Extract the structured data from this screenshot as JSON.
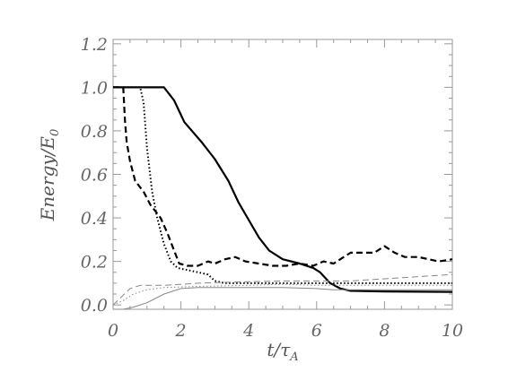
{
  "chart_data": {
    "type": "line",
    "xlim": [
      0,
      10
    ],
    "ylim": [
      -0.02,
      1.22
    ],
    "x_ticks": [
      "0",
      "2",
      "4",
      "6",
      "8",
      "10"
    ],
    "y_ticks": [
      "0.0",
      "0.2",
      "0.4",
      "0.6",
      "0.8",
      "1.0",
      "1.2"
    ],
    "xlabel": {
      "main": "t/τ",
      "sub": "A"
    },
    "ylabel": {
      "main": "Energy/E",
      "sub": "0"
    },
    "grid": false,
    "legend": "none",
    "series": [
      {
        "style": "solid-thick",
        "color": "#000000",
        "points": [
          [
            0,
            1.0
          ],
          [
            1.5,
            1.0
          ],
          [
            1.8,
            0.94
          ],
          [
            2.1,
            0.84
          ],
          [
            2.6,
            0.75
          ],
          [
            3.0,
            0.67
          ],
          [
            3.4,
            0.57
          ],
          [
            3.7,
            0.47
          ],
          [
            4.0,
            0.39
          ],
          [
            4.3,
            0.31
          ],
          [
            4.6,
            0.25
          ],
          [
            5.0,
            0.21
          ],
          [
            5.5,
            0.19
          ],
          [
            5.9,
            0.17
          ],
          [
            6.1,
            0.15
          ],
          [
            6.4,
            0.1
          ],
          [
            6.7,
            0.075
          ],
          [
            7.0,
            0.065
          ],
          [
            8.0,
            0.062
          ],
          [
            10.0,
            0.06
          ]
        ]
      },
      {
        "style": "dashed-thick",
        "color": "#000000",
        "points": [
          [
            0,
            1.0
          ],
          [
            0.3,
            1.0
          ],
          [
            0.35,
            0.85
          ],
          [
            0.4,
            0.75
          ],
          [
            0.5,
            0.66
          ],
          [
            0.65,
            0.57
          ],
          [
            0.9,
            0.52
          ],
          [
            1.1,
            0.46
          ],
          [
            1.4,
            0.4
          ],
          [
            1.6,
            0.33
          ],
          [
            1.8,
            0.25
          ],
          [
            1.95,
            0.19
          ],
          [
            2.2,
            0.18
          ],
          [
            2.5,
            0.18
          ],
          [
            2.8,
            0.2
          ],
          [
            3.0,
            0.19
          ],
          [
            3.3,
            0.21
          ],
          [
            3.6,
            0.22
          ],
          [
            3.9,
            0.2
          ],
          [
            4.3,
            0.19
          ],
          [
            4.7,
            0.18
          ],
          [
            5.1,
            0.18
          ],
          [
            5.5,
            0.19
          ],
          [
            5.9,
            0.18
          ],
          [
            6.2,
            0.2
          ],
          [
            6.5,
            0.19
          ],
          [
            6.8,
            0.22
          ],
          [
            7.0,
            0.24
          ],
          [
            7.4,
            0.24
          ],
          [
            7.7,
            0.24
          ],
          [
            8.0,
            0.27
          ],
          [
            8.3,
            0.24
          ],
          [
            8.6,
            0.22
          ],
          [
            9.0,
            0.22
          ],
          [
            9.3,
            0.21
          ],
          [
            9.6,
            0.2
          ],
          [
            10.0,
            0.21
          ]
        ]
      },
      {
        "style": "dotted-thick",
        "color": "#000000",
        "points": [
          [
            0,
            1.0
          ],
          [
            0.8,
            1.0
          ],
          [
            0.9,
            0.93
          ],
          [
            1.0,
            0.72
          ],
          [
            1.15,
            0.52
          ],
          [
            1.3,
            0.4
          ],
          [
            1.5,
            0.28
          ],
          [
            1.7,
            0.2
          ],
          [
            1.9,
            0.17
          ],
          [
            2.2,
            0.16
          ],
          [
            2.5,
            0.15
          ],
          [
            2.8,
            0.14
          ],
          [
            3.0,
            0.11
          ],
          [
            3.3,
            0.1
          ],
          [
            4.0,
            0.1
          ],
          [
            5.0,
            0.1
          ],
          [
            6.0,
            0.1
          ],
          [
            7.0,
            0.1
          ],
          [
            8.0,
            0.1
          ],
          [
            9.0,
            0.1
          ],
          [
            10.0,
            0.1
          ]
        ]
      },
      {
        "style": "dashed-thin",
        "color": "#888888",
        "points": [
          [
            0,
            0.0
          ],
          [
            0.2,
            0.03
          ],
          [
            0.5,
            0.075
          ],
          [
            0.8,
            0.09
          ],
          [
            1.5,
            0.09
          ],
          [
            2.5,
            0.1
          ],
          [
            3.5,
            0.105
          ],
          [
            5.0,
            0.11
          ],
          [
            6.0,
            0.11
          ],
          [
            7.0,
            0.11
          ],
          [
            8.0,
            0.12
          ],
          [
            9.0,
            0.13
          ],
          [
            10.0,
            0.14
          ]
        ]
      },
      {
        "style": "dotted-thin",
        "color": "#888888",
        "points": [
          [
            0,
            0.0
          ],
          [
            0.3,
            0.02
          ],
          [
            0.6,
            0.05
          ],
          [
            1.0,
            0.07
          ],
          [
            1.5,
            0.08
          ],
          [
            2.5,
            0.085
          ],
          [
            4.0,
            0.09
          ],
          [
            5.0,
            0.095
          ],
          [
            6.0,
            0.09
          ],
          [
            7.0,
            0.09
          ],
          [
            8.0,
            0.09
          ],
          [
            9.0,
            0.09
          ],
          [
            10.0,
            0.09
          ]
        ]
      },
      {
        "style": "solid-thin",
        "color": "#888888",
        "points": [
          [
            0,
            -0.02
          ],
          [
            0.3,
            -0.02
          ],
          [
            0.6,
            -0.01
          ],
          [
            1.0,
            0.01
          ],
          [
            1.5,
            0.05
          ],
          [
            2.0,
            0.075
          ],
          [
            2.5,
            0.08
          ],
          [
            3.5,
            0.08
          ],
          [
            5.0,
            0.08
          ],
          [
            6.0,
            0.075
          ],
          [
            6.5,
            0.07
          ],
          [
            7.5,
            0.07
          ],
          [
            10.0,
            0.07
          ]
        ]
      }
    ]
  }
}
